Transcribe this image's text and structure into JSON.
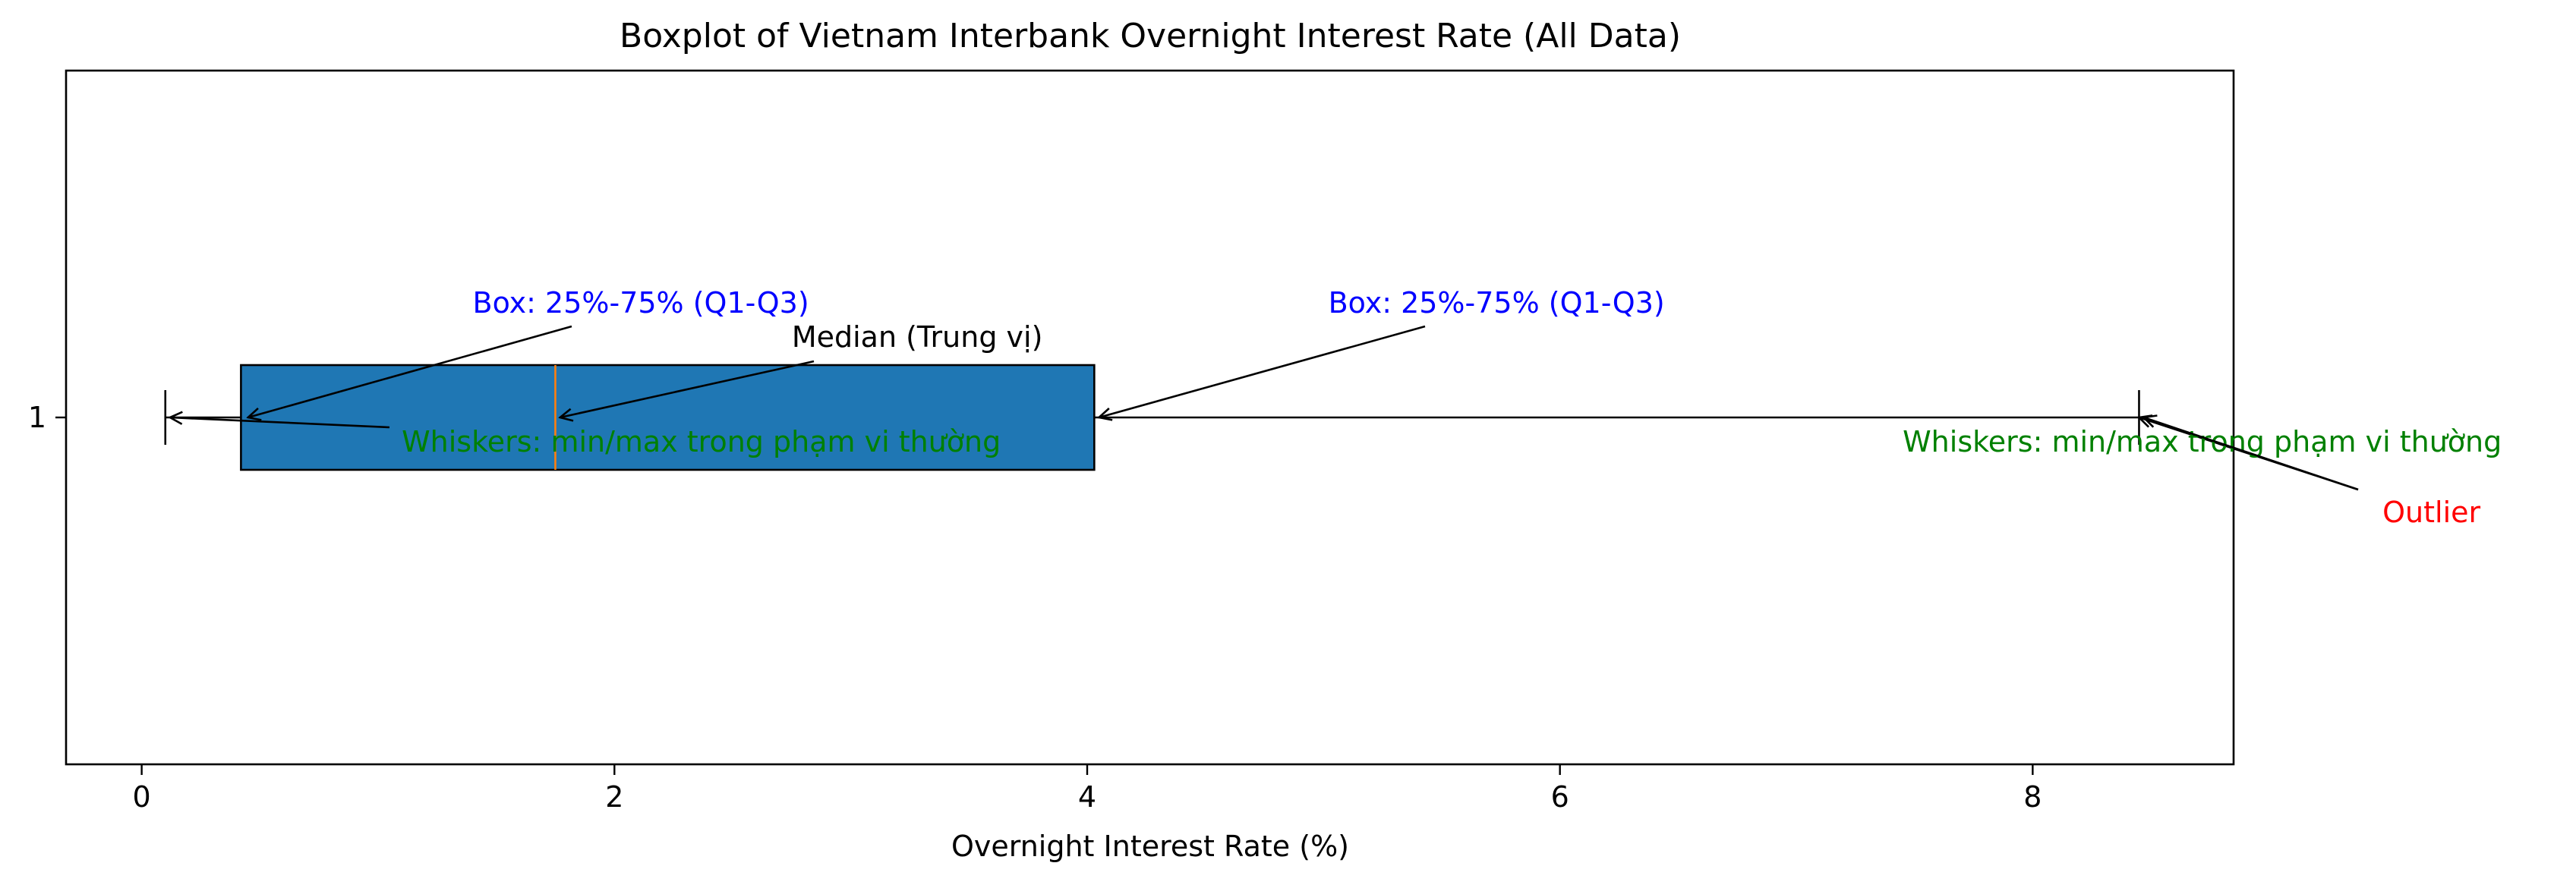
{
  "colors": {
    "box_fill": "#1f77b4",
    "median": "#ff7f0e",
    "blue_annotation": "#0000ff",
    "green_annotation": "#008000",
    "red_annotation": "#ff0000",
    "black": "#000000"
  },
  "chart_data": {
    "type": "boxplot",
    "orientation": "horizontal",
    "title": "Boxplot of Vietnam Interbank Overnight Interest Rate (All Data)",
    "xlabel": "Overnight Interest Rate (%)",
    "ylabel": "",
    "xlim": [
      -0.32,
      8.85
    ],
    "x_ticks": [
      0,
      2,
      4,
      6,
      8
    ],
    "y_tick_label": "1",
    "grid": false,
    "box": {
      "whisker_low": 0.1,
      "q1": 0.42,
      "median": 1.75,
      "q3": 4.03,
      "whisker_high": 8.45
    },
    "annotations": [
      {
        "key": "box_left",
        "text": "Box: 25%-75% (Q1-Q3)",
        "color_key": "blue_annotation",
        "points_to": 0.45,
        "text_at": 1.4
      },
      {
        "key": "box_right",
        "text": "Box: 25%-75% (Q1-Q3)",
        "color_key": "blue_annotation",
        "points_to": 4.05,
        "text_at": 5.02
      },
      {
        "key": "median",
        "text": "Median (Trung vị)",
        "color_key": "black",
        "points_to": 1.77,
        "text_at": 2.75
      },
      {
        "key": "whisker_left",
        "text": "Whiskers: min/max trong phạm vi thường",
        "color_key": "green_annotation",
        "points_to": 0.12,
        "text_at": 1.1
      },
      {
        "key": "whisker_right",
        "text": "Whiskers: min/max trong phạm vi thường",
        "color_key": "green_annotation",
        "points_to": 8.45,
        "text_at": 7.45
      },
      {
        "key": "outlier",
        "text": "Outlier",
        "color_key": "red_annotation",
        "points_to": 8.47,
        "text_at": 9.48
      }
    ]
  }
}
